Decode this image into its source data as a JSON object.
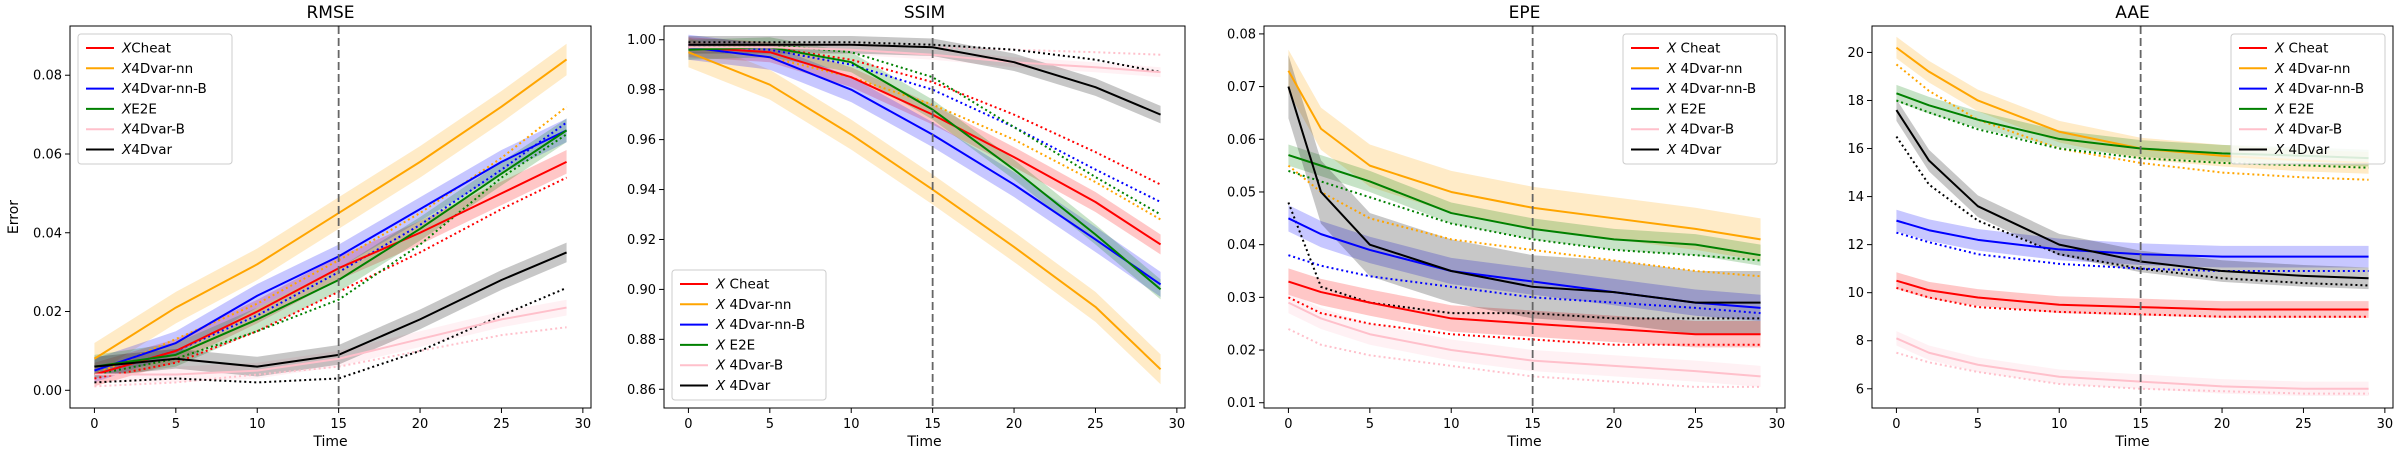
{
  "figure": {
    "legend_labels": [
      "Cheat",
      "4Dvar-nn",
      "4Dvar-nn-B",
      "E2E",
      "4Dvar-B",
      "4Dvar"
    ],
    "legend_prefix": "X",
    "colors": {
      "Cheat": "#ff0000",
      "4Dvar-nn": "#ffa500",
      "4Dvar-nn-B": "#0000ff",
      "E2E": "#008000",
      "4Dvar-B": "#ffc0cb",
      "4Dvar": "#000000"
    },
    "vline_color": "#666666"
  },
  "chart_data": [
    {
      "type": "line",
      "title": "RMSE",
      "xlabel": "Time",
      "ylabel": "Error",
      "xlim": [
        -1.5,
        30.5
      ],
      "ylim": [
        -0.0045,
        0.0925
      ],
      "xticks": [
        0,
        5,
        10,
        15,
        20,
        25,
        30
      ],
      "yticks": [
        0.0,
        0.02,
        0.04,
        0.06,
        0.08
      ],
      "ytick_labels": [
        "0.00",
        "0.02",
        "0.04",
        "0.06",
        "0.08"
      ],
      "vline_x": 15,
      "legend_position": "upper-left",
      "legend_label_gap": false,
      "x": [
        0,
        5,
        10,
        15,
        20,
        25,
        29
      ],
      "series": [
        {
          "name": "Cheat",
          "values": [
            0.004,
            0.01,
            0.02,
            0.031,
            0.04,
            0.05,
            0.058
          ],
          "band": 0.003,
          "dotted": [
            0.003,
            0.007,
            0.015,
            0.025,
            0.035,
            0.046,
            0.054
          ]
        },
        {
          "name": "4Dvar-nn",
          "values": [
            0.008,
            0.021,
            0.032,
            0.045,
            0.058,
            0.072,
            0.084
          ],
          "band": 0.004,
          "dotted": [
            0.004,
            0.013,
            0.022,
            0.033,
            0.045,
            0.059,
            0.072
          ]
        },
        {
          "name": "4Dvar-nn-B",
          "values": [
            0.005,
            0.012,
            0.024,
            0.034,
            0.046,
            0.058,
            0.066
          ],
          "band": 0.003,
          "dotted": [
            0.004,
            0.01,
            0.019,
            0.03,
            0.042,
            0.056,
            0.068
          ]
        },
        {
          "name": "E2E",
          "values": [
            0.006,
            0.009,
            0.018,
            0.028,
            0.041,
            0.055,
            0.066
          ],
          "band": 0.003,
          "dotted": [
            0.004,
            0.008,
            0.015,
            0.023,
            0.037,
            0.054,
            0.065
          ]
        },
        {
          "name": "4Dvar-B",
          "values": [
            0.004,
            0.004,
            0.005,
            0.008,
            0.013,
            0.018,
            0.021
          ],
          "band": 0.002,
          "dotted": [
            0.001,
            0.002,
            0.004,
            0.006,
            0.01,
            0.014,
            0.016
          ]
        },
        {
          "name": "4Dvar",
          "values": [
            0.006,
            0.008,
            0.006,
            0.009,
            0.018,
            0.028,
            0.035
          ],
          "band": 0.0025,
          "dotted": [
            0.002,
            0.003,
            0.002,
            0.003,
            0.01,
            0.019,
            0.026
          ]
        }
      ]
    },
    {
      "type": "line",
      "title": "SSIM",
      "xlabel": "Time",
      "ylabel": "",
      "xlim": [
        -1.5,
        30.5
      ],
      "ylim": [
        0.8525,
        1.0055
      ],
      "xticks": [
        0,
        5,
        10,
        15,
        20,
        25,
        30
      ],
      "yticks": [
        0.86,
        0.88,
        0.9,
        0.92,
        0.94,
        0.96,
        0.98,
        1.0
      ],
      "ytick_labels": [
        "0.86",
        "0.88",
        "0.90",
        "0.92",
        "0.94",
        "0.96",
        "0.98",
        "1.00"
      ],
      "vline_x": 15,
      "legend_position": "lower-left",
      "legend_label_gap": true,
      "x": [
        0,
        5,
        10,
        15,
        20,
        25,
        29
      ],
      "series": [
        {
          "name": "Cheat",
          "values": [
            0.997,
            0.995,
            0.985,
            0.97,
            0.953,
            0.935,
            0.918
          ],
          "band": 0.004,
          "dotted": [
            0.998,
            0.997,
            0.992,
            0.983,
            0.97,
            0.955,
            0.942
          ]
        },
        {
          "name": "4Dvar-nn",
          "values": [
            0.995,
            0.982,
            0.962,
            0.94,
            0.917,
            0.893,
            0.868
          ],
          "band": 0.006,
          "dotted": [
            0.997,
            0.993,
            0.985,
            0.974,
            0.96,
            0.943,
            0.928
          ]
        },
        {
          "name": "4Dvar-nn-B",
          "values": [
            0.997,
            0.993,
            0.98,
            0.962,
            0.942,
            0.92,
            0.902
          ],
          "band": 0.005,
          "dotted": [
            0.998,
            0.996,
            0.99,
            0.98,
            0.965,
            0.948,
            0.935
          ]
        },
        {
          "name": "E2E",
          "values": [
            0.996,
            0.997,
            0.991,
            0.972,
            0.948,
            0.922,
            0.9
          ],
          "band": 0.004,
          "dotted": [
            0.997,
            0.998,
            0.995,
            0.985,
            0.965,
            0.945,
            0.93
          ]
        },
        {
          "name": "4Dvar-B",
          "values": [
            0.997,
            0.997,
            0.996,
            0.994,
            0.991,
            0.989,
            0.987
          ],
          "band": 0.002,
          "dotted": [
            0.998,
            0.998,
            0.998,
            0.997,
            0.996,
            0.995,
            0.994
          ]
        },
        {
          "name": "4Dvar",
          "values": [
            0.998,
            0.998,
            0.998,
            0.997,
            0.991,
            0.981,
            0.97
          ],
          "band": 0.0035,
          "dotted": [
            0.999,
            0.999,
            0.999,
            0.998,
            0.996,
            0.992,
            0.987
          ]
        }
      ]
    },
    {
      "type": "line",
      "title": "EPE",
      "xlabel": "Time",
      "ylabel": "",
      "xlim": [
        -1.5,
        30.5
      ],
      "ylim": [
        0.009,
        0.0815
      ],
      "xticks": [
        0,
        5,
        10,
        15,
        20,
        25,
        30
      ],
      "yticks": [
        0.01,
        0.02,
        0.03,
        0.04,
        0.05,
        0.06,
        0.07,
        0.08
      ],
      "ytick_labels": [
        "0.01",
        "0.02",
        "0.03",
        "0.04",
        "0.05",
        "0.06",
        "0.07",
        "0.08"
      ],
      "vline_x": 15,
      "legend_position": "upper-right",
      "legend_label_gap": true,
      "x": [
        0,
        2,
        5,
        10,
        15,
        20,
        25,
        29
      ],
      "series": [
        {
          "name": "Cheat",
          "values": [
            0.033,
            0.031,
            0.029,
            0.026,
            0.025,
            0.024,
            0.023,
            0.023
          ],
          "band": 0.0025,
          "dotted": [
            0.03,
            0.027,
            0.025,
            0.023,
            0.022,
            0.021,
            0.021,
            0.021
          ]
        },
        {
          "name": "4Dvar-nn",
          "values": [
            0.073,
            0.062,
            0.055,
            0.05,
            0.047,
            0.045,
            0.043,
            0.041
          ],
          "band": 0.004,
          "dotted": [
            0.055,
            0.05,
            0.045,
            0.041,
            0.039,
            0.037,
            0.035,
            0.034
          ]
        },
        {
          "name": "4Dvar-nn-B",
          "values": [
            0.045,
            0.042,
            0.039,
            0.035,
            0.033,
            0.031,
            0.029,
            0.028
          ],
          "band": 0.0025,
          "dotted": [
            0.038,
            0.036,
            0.034,
            0.032,
            0.03,
            0.029,
            0.028,
            0.027
          ]
        },
        {
          "name": "E2E",
          "values": [
            0.057,
            0.055,
            0.052,
            0.046,
            0.043,
            0.041,
            0.04,
            0.038
          ],
          "band": 0.002,
          "dotted": [
            0.054,
            0.052,
            0.049,
            0.044,
            0.041,
            0.039,
            0.038,
            0.037
          ]
        },
        {
          "name": "4Dvar-B",
          "values": [
            0.029,
            0.026,
            0.023,
            0.02,
            0.018,
            0.017,
            0.016,
            0.015
          ],
          "band": 0.002,
          "dotted": [
            0.024,
            0.021,
            0.019,
            0.017,
            0.015,
            0.014,
            0.013,
            0.013
          ]
        },
        {
          "name": "4Dvar",
          "values": [
            0.07,
            0.05,
            0.04,
            0.035,
            0.032,
            0.031,
            0.029,
            0.029
          ],
          "band": 0.006,
          "dotted": [
            0.048,
            0.032,
            0.029,
            0.027,
            0.027,
            0.026,
            0.026,
            0.026
          ]
        }
      ]
    },
    {
      "type": "line",
      "title": "AAE",
      "xlabel": "Time",
      "ylabel": "",
      "xlim": [
        -1.5,
        30.5
      ],
      "ylim": [
        5.2,
        21.1
      ],
      "xticks": [
        0,
        5,
        10,
        15,
        20,
        25,
        30
      ],
      "yticks": [
        6,
        8,
        10,
        12,
        14,
        16,
        18,
        20
      ],
      "ytick_labels": [
        "6",
        "8",
        "10",
        "12",
        "14",
        "16",
        "18",
        "20"
      ],
      "vline_x": 15,
      "legend_position": "upper-right",
      "legend_label_gap": true,
      "x": [
        0,
        2,
        5,
        10,
        15,
        20,
        25,
        29
      ],
      "series": [
        {
          "name": "Cheat",
          "values": [
            10.5,
            10.1,
            9.8,
            9.5,
            9.4,
            9.3,
            9.3,
            9.3
          ],
          "band": 0.35,
          "dotted": [
            10.2,
            9.8,
            9.4,
            9.2,
            9.1,
            9.0,
            9.0,
            9.0
          ]
        },
        {
          "name": "4Dvar-nn",
          "values": [
            20.2,
            19.2,
            18.0,
            16.7,
            16.0,
            15.7,
            15.5,
            15.4
          ],
          "band": 0.45,
          "dotted": [
            19.5,
            18.4,
            17.2,
            16.0,
            15.4,
            15.0,
            14.8,
            14.7
          ]
        },
        {
          "name": "4Dvar-nn-B",
          "values": [
            13.0,
            12.6,
            12.2,
            11.8,
            11.6,
            11.5,
            11.5,
            11.5
          ],
          "band": 0.45,
          "dotted": [
            12.5,
            12.1,
            11.6,
            11.2,
            11.0,
            10.9,
            10.9,
            10.9
          ]
        },
        {
          "name": "E2E",
          "values": [
            18.3,
            17.8,
            17.2,
            16.4,
            16.0,
            15.8,
            15.7,
            15.6
          ],
          "band": 0.35,
          "dotted": [
            18.0,
            17.5,
            16.8,
            16.0,
            15.6,
            15.4,
            15.3,
            15.2
          ]
        },
        {
          "name": "4Dvar-B",
          "values": [
            8.1,
            7.5,
            7.0,
            6.5,
            6.3,
            6.1,
            6.0,
            6.0
          ],
          "band": 0.3,
          "dotted": [
            7.5,
            7.1,
            6.7,
            6.2,
            6.0,
            5.9,
            5.8,
            5.8
          ]
        },
        {
          "name": "4Dvar",
          "values": [
            17.6,
            15.5,
            13.6,
            12.0,
            11.3,
            10.9,
            10.7,
            10.6
          ],
          "band": 0.45,
          "dotted": [
            16.5,
            14.5,
            13.0,
            11.6,
            11.0,
            10.6,
            10.4,
            10.3
          ]
        }
      ]
    }
  ]
}
